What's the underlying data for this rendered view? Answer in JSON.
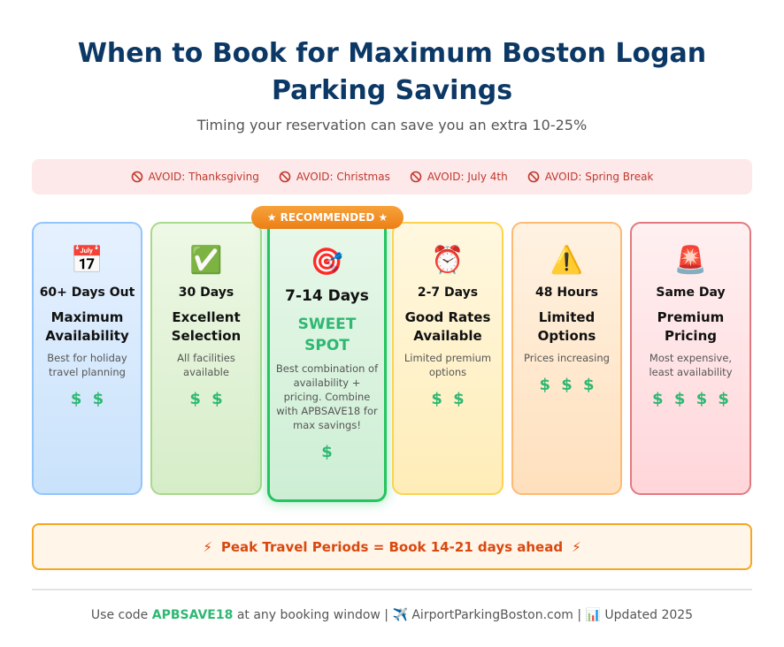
{
  "header": {
    "title": "When to Book for Maximum Boston Logan Parking Savings",
    "subtitle": "Timing your reservation can save you an extra 10-25%"
  },
  "avoid": [
    "AVOID: Thanksgiving",
    "AVOID: Christmas",
    "AVOID: July 4th",
    "AVOID: Spring Break"
  ],
  "badge": "★ RECOMMENDED ★",
  "cards": [
    {
      "icon": "📅",
      "when": "60+ Days Out",
      "title": "Maximum Availability",
      "desc": "Best for holiday travel planning",
      "price": "$ $"
    },
    {
      "icon": "✅",
      "when": "30 Days",
      "title": "Excellent Selection",
      "desc": "All facilities available",
      "price": "$ $"
    },
    {
      "icon": "🎯",
      "when": "7-14 Days",
      "title": "SWEET SPOT",
      "desc": "Best combination of availability + pricing. Combine with APBSAVE18 for max savings!",
      "price": "$"
    },
    {
      "icon": "⏰",
      "when": "2-7 Days",
      "title": "Good Rates Available",
      "desc": "Limited premium options",
      "price": "$ $"
    },
    {
      "icon": "⚠️",
      "when": "48 Hours",
      "title": "Limited Options",
      "desc": "Prices increasing",
      "price": "$ $ $"
    },
    {
      "icon": "🚨",
      "when": "Same Day",
      "title": "Premium Pricing",
      "desc": "Most expensive, least availability",
      "price": "$ $ $ $"
    }
  ],
  "peak": {
    "icon_left": "⚡",
    "text": "Peak Travel Periods = Book 14-21 days ahead",
    "icon_right": "⚡"
  },
  "footer": {
    "prefix": "Use code",
    "code": "APBSAVE18",
    "suffix": "at any booking window | ✈️ AirportParkingBoston.com | 📊 Updated 2025"
  }
}
